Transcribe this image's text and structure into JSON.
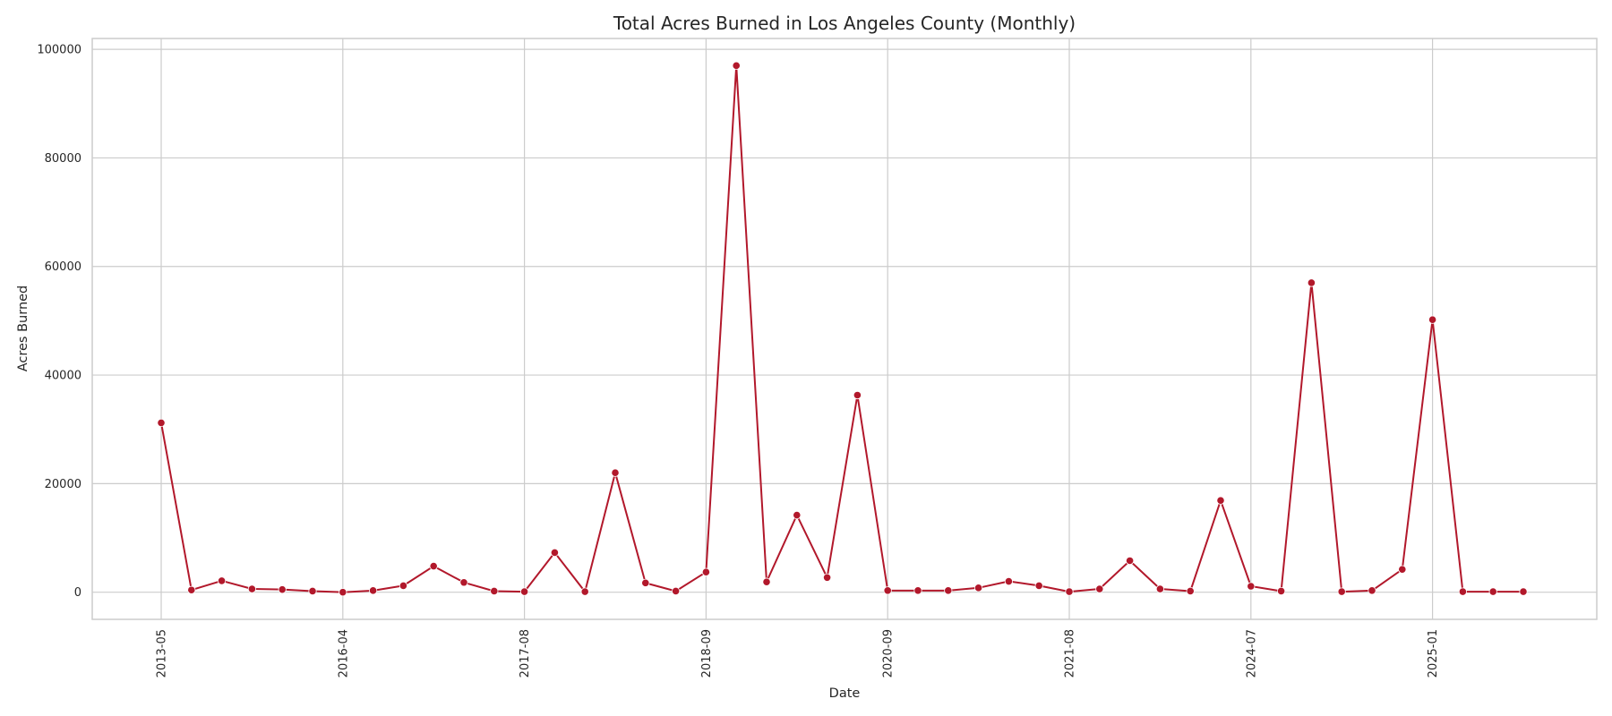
{
  "chart_data": {
    "type": "line",
    "title": "Total Acres Burned in Los Angeles County (Monthly)",
    "xlabel": "Date",
    "ylabel": "Acres Burned",
    "ylim": [
      -5000,
      102000
    ],
    "yticks": [
      0,
      20000,
      40000,
      60000,
      80000,
      100000
    ],
    "xtick_labels": [
      "2013-05",
      "2016-04",
      "2017-08",
      "2018-09",
      "2020-09",
      "2021-08",
      "2024-07",
      "2025-01"
    ],
    "xtick_positions": [
      0,
      6,
      12,
      18,
      24,
      30,
      36,
      42
    ],
    "grid": true,
    "color": "#b2182b",
    "values": [
      31200,
      400,
      2100,
      600,
      500,
      200,
      0,
      300,
      1200,
      4800,
      1800,
      200,
      100,
      7300,
      100,
      22000,
      1700,
      200,
      3700,
      97000,
      1900,
      14200,
      2700,
      36300,
      300,
      300,
      300,
      800,
      2000,
      1200,
      100,
      600,
      5800,
      600,
      200,
      16900,
      1100,
      200,
      57000,
      100,
      300,
      4200,
      50200,
      100,
      100,
      100
    ]
  }
}
